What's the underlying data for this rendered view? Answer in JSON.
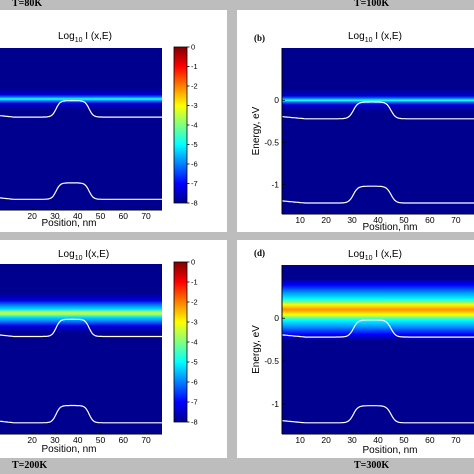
{
  "figure": {
    "temperatures": [
      "T=80K",
      "T=100K",
      "T=200K",
      "T=300K"
    ]
  },
  "colors": {
    "background_blue": "#00008f",
    "profile_line": "#ffffff"
  },
  "chart_data": [
    {
      "type": "heatmap",
      "panel": "",
      "temperature": "T=80K",
      "title": "Log10 I (x,E)",
      "title_main": "Log",
      "title_sub": "10",
      "title_rest": " I (x,E)",
      "xlabel": "Position, nm",
      "ylabel": "",
      "xticks": [
        20,
        30,
        40,
        50,
        60,
        70
      ],
      "yticks": [],
      "colorbar": {
        "ticks": [
          0,
          -1,
          -2,
          -3,
          -4,
          -5,
          -6,
          -7,
          -8
        ],
        "range": [
          -8,
          0
        ]
      },
      "band_energy": 0.0,
      "band_spread": "narrow"
    },
    {
      "type": "heatmap",
      "panel": "(b)",
      "temperature": "T=100K",
      "title": "Log10 I (x,E)",
      "title_main": "Log",
      "title_sub": "10",
      "title_rest": " I (x,E)",
      "xlabel": "Position, nm",
      "ylabel": "Energy, eV",
      "xticks": [
        10,
        20,
        30,
        40,
        50,
        60,
        70
      ],
      "yticks": [
        0,
        -0.5,
        -1
      ],
      "band_energy": 0.0,
      "band_spread": "narrow"
    },
    {
      "type": "heatmap",
      "panel": "",
      "temperature": "T=200K",
      "title": "Log10 I(x,E)",
      "title_main": "Log",
      "title_sub": "10",
      "title_rest": " I(x,E)",
      "xlabel": "Position, nm",
      "ylabel": "",
      "xticks": [
        20,
        30,
        40,
        50,
        60,
        70
      ],
      "yticks": [],
      "colorbar": {
        "ticks": [
          0,
          -1,
          -2,
          -3,
          -4,
          -5,
          -6,
          -7,
          -8
        ],
        "range": [
          -8,
          0
        ]
      },
      "band_energy": 0.05,
      "band_spread": "medium"
    },
    {
      "type": "heatmap",
      "panel": "(d)",
      "temperature": "T=300K",
      "title": "Log10 I (x,E)",
      "title_main": "Log",
      "title_sub": "10",
      "title_rest": " I (x,E)",
      "xlabel": "Position, nm",
      "ylabel": "Energy, eV",
      "xticks": [
        10,
        20,
        30,
        40,
        50,
        60,
        70
      ],
      "yticks": [
        0,
        -0.5,
        -1
      ],
      "band_energy": 0.1,
      "band_spread": "wide"
    }
  ]
}
